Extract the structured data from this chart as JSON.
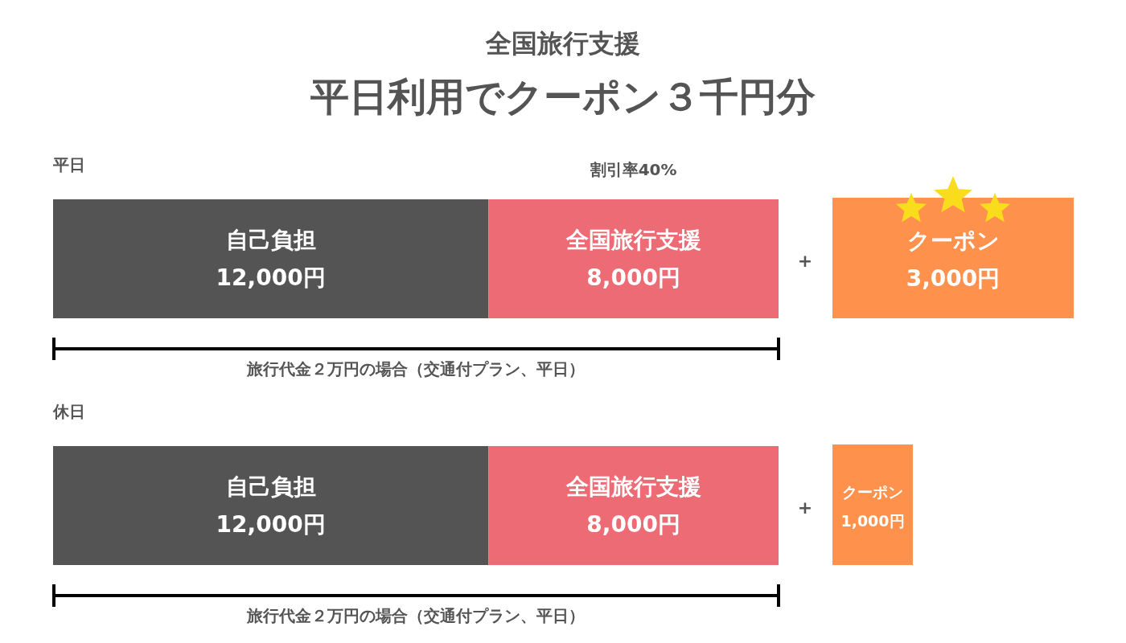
{
  "chart_data": [
    {
      "type": "other",
      "title": "全国旅行支援",
      "subtitle": "平日利用でクーポン３千円分"
    },
    {
      "type": "bar",
      "orientation": "horizontal",
      "stacked": true,
      "title": "平日",
      "categories": [
        null
      ],
      "series": [
        {
          "name": "自己負担",
          "color": "#545454",
          "values": [
            12000
          ],
          "value_labels": [
            "12,000円"
          ]
        },
        {
          "name": "全国旅行支援",
          "color": "#ec6b75",
          "values": [
            8000
          ],
          "value_labels": [
            "8,000円"
          ]
        }
      ],
      "annotations": [
        "割引率40%",
        "旅行代金２万円の場合（交通付プラン、平日）"
      ]
    },
    {
      "type": "other",
      "categories": [
        "クーポン"
      ],
      "values": [
        3000
      ],
      "value_labels": [
        "3,000円"
      ],
      "color": "#fe914b",
      "annotations": [
        "+"
      ]
    },
    {
      "type": "bar",
      "orientation": "horizontal",
      "stacked": true,
      "title": "休日",
      "categories": [
        null
      ],
      "series": [
        {
          "name": "自己負担",
          "color": "#545454",
          "values": [
            12000
          ],
          "value_labels": [
            "12,000円"
          ]
        },
        {
          "name": "全国旅行支援",
          "color": "#ec6b75",
          "values": [
            8000
          ],
          "value_labels": [
            "8,000円"
          ]
        }
      ],
      "annotations": [
        "旅行代金２万円の場合（交通付プラン、平日）"
      ]
    },
    {
      "type": "other",
      "categories": [
        "クーポン"
      ],
      "values": [
        1000
      ],
      "value_labels": [
        "1,000円"
      ],
      "color": "#fe914b",
      "annotations": [
        "+"
      ]
    }
  ]
}
